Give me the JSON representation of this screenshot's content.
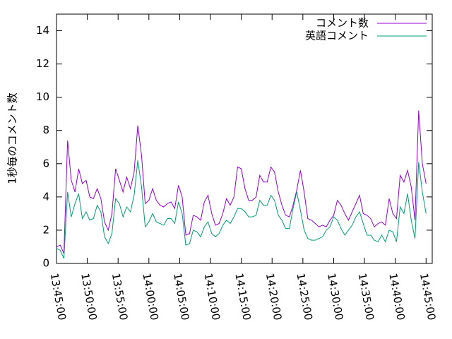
{
  "chart_data": {
    "type": "line",
    "y_label": "1秒毎のコメント数",
    "x": [
      "13:45:00",
      "13:45:36",
      "13:46:12",
      "13:46:48",
      "13:47:24",
      "13:48:00",
      "13:48:36",
      "13:49:12",
      "13:49:48",
      "13:50:24",
      "13:51:00",
      "13:51:36",
      "13:52:12",
      "13:52:48",
      "13:53:24",
      "13:54:00",
      "13:54:36",
      "13:55:12",
      "13:55:48",
      "13:56:24",
      "13:57:00",
      "13:57:36",
      "13:58:12",
      "13:58:48",
      "13:59:24",
      "14:00:00",
      "14:00:36",
      "14:01:12",
      "14:01:48",
      "14:02:24",
      "14:03:00",
      "14:03:36",
      "14:04:12",
      "14:04:48",
      "14:05:24",
      "14:06:00",
      "14:06:36",
      "14:07:12",
      "14:07:48",
      "14:08:24",
      "14:09:00",
      "14:09:36",
      "14:10:12",
      "14:10:48",
      "14:11:24",
      "14:12:00",
      "14:12:36",
      "14:13:12",
      "14:13:48",
      "14:14:24",
      "14:15:00",
      "14:15:36",
      "14:16:12",
      "14:16:48",
      "14:17:24",
      "14:18:00",
      "14:18:36",
      "14:19:12",
      "14:19:48",
      "14:20:24",
      "14:21:00",
      "14:21:36",
      "14:22:12",
      "14:22:48",
      "14:23:24",
      "14:24:00",
      "14:24:36",
      "14:25:12",
      "14:25:48",
      "14:26:24",
      "14:27:00",
      "14:27:36",
      "14:28:12",
      "14:28:48",
      "14:29:24",
      "14:30:00",
      "14:30:36",
      "14:31:12",
      "14:31:48",
      "14:32:24",
      "14:33:00",
      "14:33:36",
      "14:34:12",
      "14:34:48",
      "14:35:24",
      "14:36:00",
      "14:36:36",
      "14:37:12",
      "14:37:48",
      "14:38:24",
      "14:39:00",
      "14:39:36",
      "14:40:12",
      "14:40:48",
      "14:41:24",
      "14:42:00",
      "14:42:36",
      "14:43:12",
      "14:43:48",
      "14:44:24",
      "14:45:00"
    ],
    "series": [
      {
        "name": "コメント数",
        "color": "#9400d3",
        "values": [
          1.0,
          1.1,
          0.6,
          7.4,
          5,
          4.3,
          5.7,
          4.8,
          5,
          4,
          3.9,
          4.5,
          3.9,
          2.5,
          2,
          3,
          5.7,
          5,
          4.3,
          5.2,
          4.5,
          5.5,
          8.3,
          6.5,
          3.6,
          3.8,
          4.5,
          3.8,
          3.5,
          3.4,
          3.6,
          3.7,
          3.3,
          4.7,
          4,
          1.7,
          1.8,
          2.9,
          2.8,
          2.6,
          3.7,
          4.1,
          3,
          2.3,
          2.4,
          3,
          3.9,
          3.5,
          4,
          5.8,
          5.7,
          4.5,
          3.8,
          3.8,
          4,
          5.3,
          4.9,
          4.9,
          5.8,
          5.5,
          4.3,
          3.5,
          2.9,
          2.8,
          3.5,
          4.4,
          5.6,
          4.3,
          2.7,
          2.6,
          2.4,
          2.2,
          2.3,
          2.2,
          2.6,
          2.9,
          3.8,
          3.5,
          3,
          2.6,
          3.1,
          3.6,
          4.1,
          3,
          2.9,
          2.7,
          2.2,
          2.4,
          2.5,
          2.3,
          3.9,
          3,
          2.7,
          5.3,
          4.9,
          5.6,
          4.6,
          2.6,
          9.2,
          6,
          4.8
        ]
      },
      {
        "name": "英語コメント",
        "color": "#009e73",
        "values": [
          0.9,
          0.8,
          0.3,
          4.3,
          2.8,
          3.6,
          4.2,
          2.7,
          3.1,
          2.6,
          2.7,
          3.5,
          3.1,
          1.6,
          1.2,
          1.8,
          3.9,
          3.6,
          2.8,
          3.4,
          3.1,
          4.1,
          6.2,
          4.6,
          2.2,
          2.5,
          3,
          2.5,
          2.4,
          2.3,
          2.7,
          2.7,
          2.4,
          3.7,
          3,
          1.1,
          1.2,
          2,
          1.9,
          1.6,
          2.2,
          2.5,
          1.8,
          1.6,
          1.8,
          2.3,
          2.6,
          2.4,
          2.8,
          3.3,
          3.3,
          3.1,
          2.8,
          2.8,
          2.9,
          3.8,
          3.5,
          3.5,
          4.1,
          3.8,
          2.9,
          2.6,
          2.1,
          2.1,
          3.3,
          4.3,
          3.2,
          2,
          1.5,
          1.4,
          1.4,
          1.5,
          1.6,
          2,
          2.2,
          2.8,
          2.6,
          2.1,
          1.7,
          2,
          2.3,
          2.8,
          3.1,
          2.4,
          1.7,
          1.7,
          1.4,
          1.3,
          1.7,
          1.3,
          2,
          1.9,
          1.3,
          3.4,
          3,
          4.2,
          2.6,
          1.5,
          6.1,
          4.3,
          3
        ]
      }
    ],
    "xlim": [
      "13:45:00",
      "14:46:00"
    ],
    "xticks": [
      "13:45:00",
      "13:50:00",
      "13:55:00",
      "14:00:00",
      "14:05:00",
      "14:10:00",
      "14:15:00",
      "14:20:00",
      "14:25:00",
      "14:30:00",
      "14:35:00",
      "14:40:00",
      "14:45:00"
    ],
    "ylim": [
      0,
      15
    ],
    "yticks": [
      0,
      2,
      4,
      6,
      8,
      10,
      12,
      14
    ],
    "grid": false,
    "legend": "top-right"
  }
}
